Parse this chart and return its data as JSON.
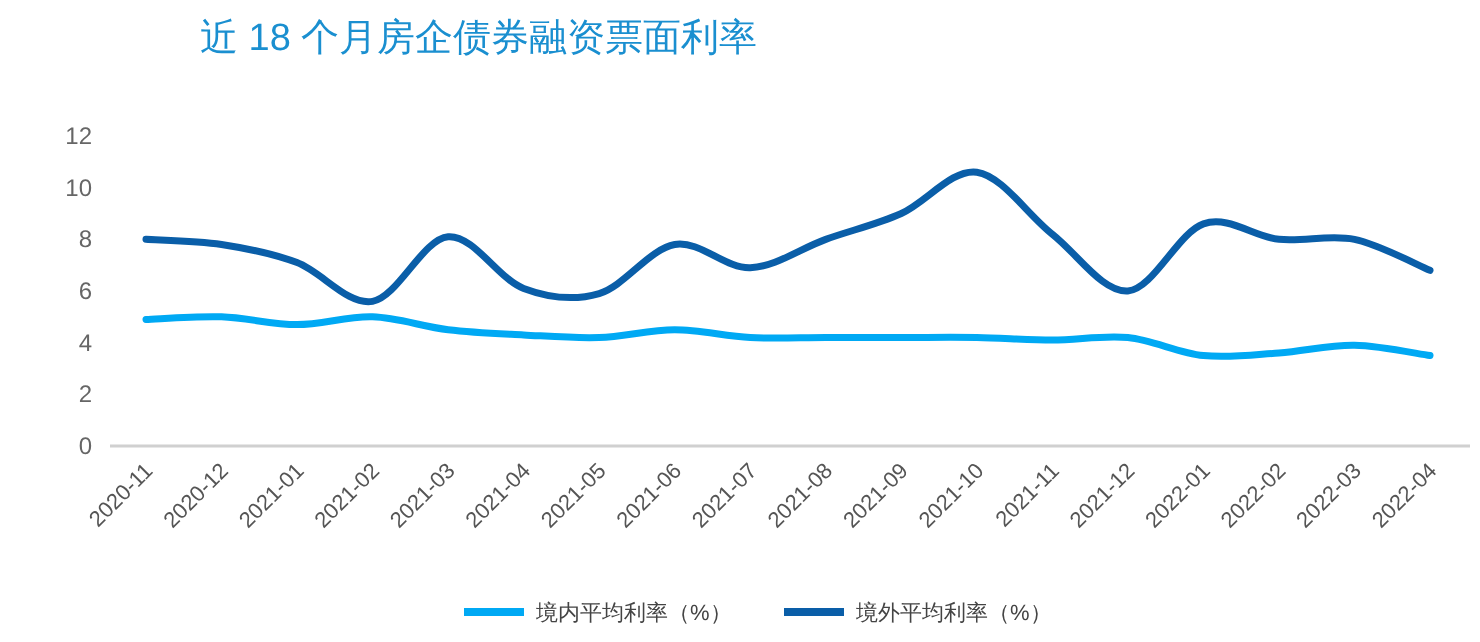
{
  "chart_data": {
    "type": "line",
    "title": "近 18 个月房企债券融资票面利率",
    "categories": [
      "2020-11",
      "2020-12",
      "2021-01",
      "2021-02",
      "2021-03",
      "2021-04",
      "2021-05",
      "2021-06",
      "2021-07",
      "2021-08",
      "2021-09",
      "2021-10",
      "2021-11",
      "2021-12",
      "2022-01",
      "2022-02",
      "2022-03",
      "2022-04"
    ],
    "series": [
      {
        "name": "境内平均利率（%）",
        "color": "#00a9f4",
        "values": [
          4.9,
          5.0,
          4.7,
          5.0,
          4.5,
          4.3,
          4.2,
          4.5,
          4.2,
          4.2,
          4.2,
          4.2,
          4.1,
          4.2,
          3.5,
          3.6,
          3.9,
          3.5
        ]
      },
      {
        "name": "境外平均利率（%）",
        "color": "#0a5ea8",
        "values": [
          8.0,
          7.8,
          7.1,
          5.6,
          8.1,
          6.1,
          5.9,
          7.8,
          6.9,
          8.0,
          9.0,
          10.6,
          8.2,
          6.0,
          8.6,
          8.0,
          8.0,
          6.8
        ]
      }
    ],
    "ylim": [
      0,
      12
    ],
    "yticks": [
      0,
      2,
      4,
      6,
      8,
      10,
      12
    ],
    "grid": false,
    "legend": "bottom",
    "marker": "none",
    "line_style": "solid"
  }
}
